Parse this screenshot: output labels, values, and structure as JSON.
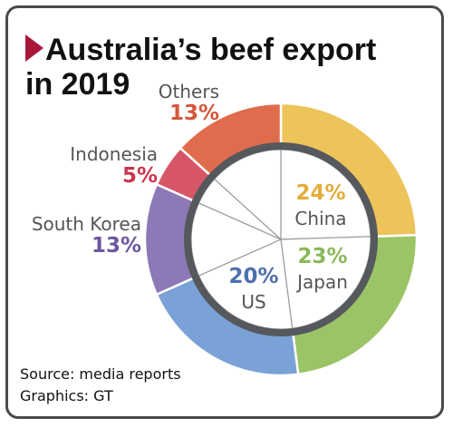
{
  "title_line1": "Australia’s beef export",
  "title_line2": "in 2019",
  "source": "Source: media reports",
  "graphics": "Graphics: GT",
  "colors": {
    "title_triangle": "#a8183a",
    "ring_border": "#55585c",
    "inner_lines": "#9a9a9a",
    "name_text": "#555555"
  },
  "chart_data": {
    "type": "pie",
    "title": "Australia’s beef export in 2019",
    "unit": "%",
    "categories": [
      "China",
      "Japan",
      "US",
      "South Korea",
      "Indonesia",
      "Others"
    ],
    "values": [
      24,
      23,
      20,
      13,
      5,
      13
    ],
    "labels": [
      "24%",
      "23%",
      "20%",
      "13%",
      "5%",
      "13%"
    ],
    "colors": [
      "#edc45a",
      "#9bc466",
      "#7aa2d6",
      "#8c79b6",
      "#d65668",
      "#e06c4e"
    ],
    "label_colors": [
      "#e3ad3a",
      "#8bb85a",
      "#4f6fae",
      "#6d56a0",
      "#c9364f",
      "#d4573a"
    ],
    "legend": "none"
  }
}
